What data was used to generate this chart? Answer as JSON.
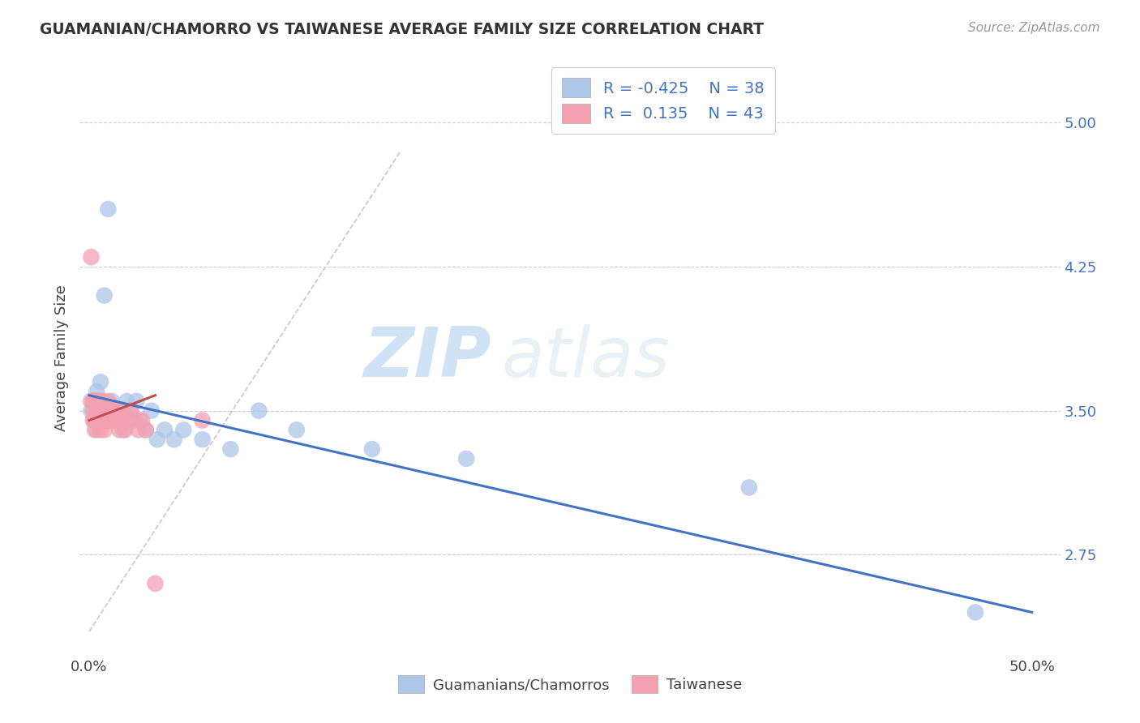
{
  "title": "GUAMANIAN/CHAMORRO VS TAIWANESE AVERAGE FAMILY SIZE CORRELATION CHART",
  "source": "Source: ZipAtlas.com",
  "ylabel": "Average Family Size",
  "xlim": [
    -0.005,
    0.515
  ],
  "ylim": [
    2.25,
    5.3
  ],
  "yticks": [
    2.75,
    3.5,
    4.25,
    5.0
  ],
  "xtick_vals": [
    0.0,
    0.5
  ],
  "xtick_labels": [
    "0.0%",
    "50.0%"
  ],
  "ytick_labels_right": [
    "2.75",
    "3.50",
    "4.25",
    "5.00"
  ],
  "guamanian_color": "#aec6e8",
  "taiwanese_color": "#f4a0b0",
  "trendline_guamanian_color": "#4472c4",
  "trendline_taiwanese_color": "#c0504d",
  "background_color": "#ffffff",
  "watermark_zip": "ZIP",
  "watermark_atlas": "atlas",
  "guamanian_x": [
    0.001,
    0.002,
    0.003,
    0.004,
    0.004,
    0.005,
    0.005,
    0.006,
    0.007,
    0.008,
    0.009,
    0.01,
    0.011,
    0.012,
    0.013,
    0.014,
    0.015,
    0.016,
    0.018,
    0.019,
    0.02,
    0.022,
    0.025,
    0.027,
    0.03,
    0.033,
    0.036,
    0.04,
    0.045,
    0.05,
    0.06,
    0.075,
    0.09,
    0.11,
    0.15,
    0.2,
    0.35,
    0.47
  ],
  "guamanian_y": [
    3.5,
    3.55,
    3.45,
    3.6,
    3.4,
    3.55,
    3.45,
    3.65,
    3.5,
    4.1,
    3.45,
    4.55,
    3.5,
    3.55,
    3.45,
    3.5,
    3.45,
    3.5,
    3.4,
    3.45,
    3.55,
    3.5,
    3.55,
    3.45,
    3.4,
    3.5,
    3.35,
    3.4,
    3.35,
    3.4,
    3.35,
    3.3,
    3.5,
    3.4,
    3.3,
    3.25,
    3.1,
    2.45
  ],
  "taiwanese_x": [
    0.001,
    0.001,
    0.002,
    0.002,
    0.003,
    0.003,
    0.003,
    0.004,
    0.004,
    0.004,
    0.005,
    0.005,
    0.005,
    0.006,
    0.006,
    0.006,
    0.007,
    0.007,
    0.007,
    0.008,
    0.008,
    0.008,
    0.009,
    0.009,
    0.01,
    0.01,
    0.011,
    0.012,
    0.013,
    0.014,
    0.015,
    0.016,
    0.017,
    0.018,
    0.019,
    0.02,
    0.022,
    0.024,
    0.026,
    0.028,
    0.03,
    0.035,
    0.06
  ],
  "taiwanese_y": [
    4.3,
    3.55,
    3.5,
    3.45,
    3.55,
    3.45,
    3.4,
    3.55,
    3.5,
    3.45,
    3.55,
    3.5,
    3.45,
    3.55,
    3.5,
    3.4,
    3.55,
    3.5,
    3.45,
    3.5,
    3.45,
    3.4,
    3.5,
    3.45,
    3.55,
    3.5,
    3.45,
    3.5,
    3.45,
    3.5,
    3.45,
    3.4,
    3.45,
    3.5,
    3.4,
    3.45,
    3.5,
    3.45,
    3.4,
    3.45,
    3.4,
    2.6,
    3.45
  ],
  "diag_line_x": [
    0.0,
    0.165
  ],
  "diag_line_y": [
    2.35,
    4.85
  ]
}
